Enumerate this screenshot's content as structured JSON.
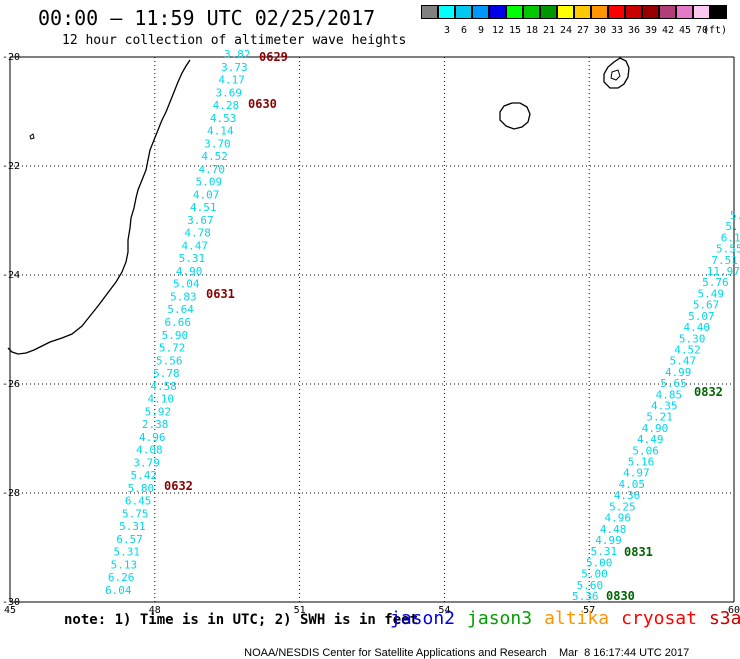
{
  "header": {
    "title": "00:00 – 11:59 UTC 02/25/2017",
    "subtitle": "12 hour collection of altimeter wave heights"
  },
  "legend": {
    "unit_label": "(ft)",
    "swatches": [
      {
        "color": "#808080",
        "label": ""
      },
      {
        "color": "#00ffff",
        "label": "3"
      },
      {
        "color": "#00c8f0",
        "label": "6"
      },
      {
        "color": "#0096ff",
        "label": "9"
      },
      {
        "color": "#0000e6",
        "label": "12"
      },
      {
        "color": "#00ff00",
        "label": "15"
      },
      {
        "color": "#00c800",
        "label": "18"
      },
      {
        "color": "#009600",
        "label": "21"
      },
      {
        "color": "#ffff00",
        "label": "24"
      },
      {
        "color": "#ffc800",
        "label": "27"
      },
      {
        "color": "#ff9600",
        "label": "30"
      },
      {
        "color": "#ff0000",
        "label": "33"
      },
      {
        "color": "#c80000",
        "label": "36"
      },
      {
        "color": "#960000",
        "label": "39"
      },
      {
        "color": "#b43c78",
        "label": "42"
      },
      {
        "color": "#e678c8",
        "label": "45"
      },
      {
        "color": "#ffc8f0",
        "label": "70"
      },
      {
        "color": "#000000",
        "label": ""
      }
    ]
  },
  "map": {
    "lon_ticks": [
      "45",
      "48",
      "51",
      "54",
      "57",
      "60"
    ],
    "lat_ticks": [
      "-20",
      "-22",
      "-24",
      "-26",
      "-28",
      "-30"
    ],
    "lon_range": [
      45,
      60
    ],
    "lat_range": [
      -20,
      -30
    ]
  },
  "track_west": {
    "values": [
      "3.82",
      "3.73",
      "4.17",
      "3.69",
      "4.28",
      "4.53",
      "4.14",
      "3.70",
      "4.52",
      "4.70",
      "5.09",
      "4.07",
      "4.51",
      "3.67",
      "4.78",
      "4.47",
      "5.31",
      "4.90",
      "5.04",
      "5.83",
      "5.64",
      "6.66",
      "5.90",
      "5.72",
      "5.56",
      "5.78",
      "4.58",
      "4.10",
      "5.92",
      "2.38",
      "4.96",
      "4.08",
      "3.79",
      "5.42",
      "5.80",
      "6.45",
      "5.75",
      "5.31",
      "6.57",
      "5.31",
      "5.13",
      "6.26",
      "6.04"
    ],
    "times": [
      "0629",
      "0630",
      "0631",
      "0632"
    ]
  },
  "track_east": {
    "values": [
      "5.",
      "5.",
      "6.16",
      "5.55",
      "7.51",
      "11.97",
      "5.76",
      "5.49",
      "5.67",
      "5.07",
      "4.40",
      "5.30",
      "4.52",
      "5.47",
      "4.99",
      "5.65",
      "4.85",
      "4.35",
      "5.21",
      "4.90",
      "4.49",
      "5.06",
      "5.16",
      "4.97",
      "4.05",
      "4.36",
      "5.25",
      "4.96",
      "4.48",
      "4.99",
      "5.31",
      "5.00",
      "5.00",
      "5.60",
      "5.36"
    ],
    "times": [
      "0832",
      "0831",
      "0830"
    ]
  },
  "note": "note: 1) Time is in UTC; 2) SWH is in feet",
  "satellites": [
    {
      "name": "jason2",
      "color": "#0000e6"
    },
    {
      "name": "jason3",
      "color": "#00a000"
    },
    {
      "name": "altika",
      "color": "#ff9600"
    },
    {
      "name": "cryosat",
      "color": "#ff0000"
    },
    {
      "name": "s3a",
      "color": "#c80000"
    }
  ],
  "footer": {
    "credit": "NOAA/NESDIS Center for Satellite Applications and Research",
    "timestamp": "Mar  8 16:17:44 UTC 2017"
  },
  "colors": {
    "swh_text": "#00d8e8",
    "swh_highlight": "#0000c8",
    "swh_low": "#505050",
    "time_west": "#8b0000",
    "time_east": "#006400"
  }
}
